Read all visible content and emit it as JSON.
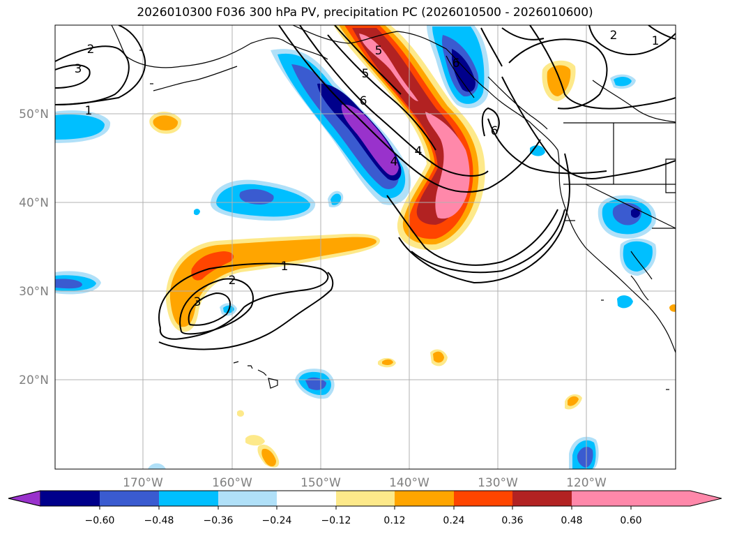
{
  "title": "2026010300 F036 300 hPa PV, precipitation PC (2026010500 - 2026010600)",
  "map": {
    "lat_labels": [
      {
        "lat": 50,
        "label": "50°N"
      },
      {
        "lat": 40,
        "label": "40°N"
      },
      {
        "lat": 30,
        "label": "30°N"
      },
      {
        "lat": 20,
        "label": "20°N"
      }
    ],
    "lon_labels": [
      {
        "lon": -170,
        "label": "170°W"
      },
      {
        "lon": -160,
        "label": "160°W"
      },
      {
        "lon": -150,
        "label": "150°W"
      },
      {
        "lon": -140,
        "label": "140°W"
      },
      {
        "lon": -130,
        "label": "130°W"
      },
      {
        "lon": -120,
        "label": "120°W"
      }
    ],
    "extent": {
      "lon_min": -180,
      "lon_max": -110,
      "lat_min": 10,
      "lat_max": 60
    },
    "pv_contour_labels": [
      "2",
      "3",
      "1",
      "5",
      "5",
      "6",
      "4",
      "4",
      "6",
      "2",
      "1",
      "1",
      "2",
      "3",
      "6"
    ]
  },
  "colorbar": {
    "ticks": [
      "−0.60",
      "−0.48",
      "−0.36",
      "−0.24",
      "−0.12",
      "0.12",
      "0.24",
      "0.36",
      "0.48",
      "0.60"
    ],
    "colors": [
      "#9932cc",
      "#00008b",
      "#3a5bd0",
      "#00bfff",
      "#b0e0f8",
      "#ffffff",
      "#fde98a",
      "#ffa500",
      "#ff4500",
      "#b22222",
      "#ff88aa",
      "#ff88aa"
    ]
  }
}
